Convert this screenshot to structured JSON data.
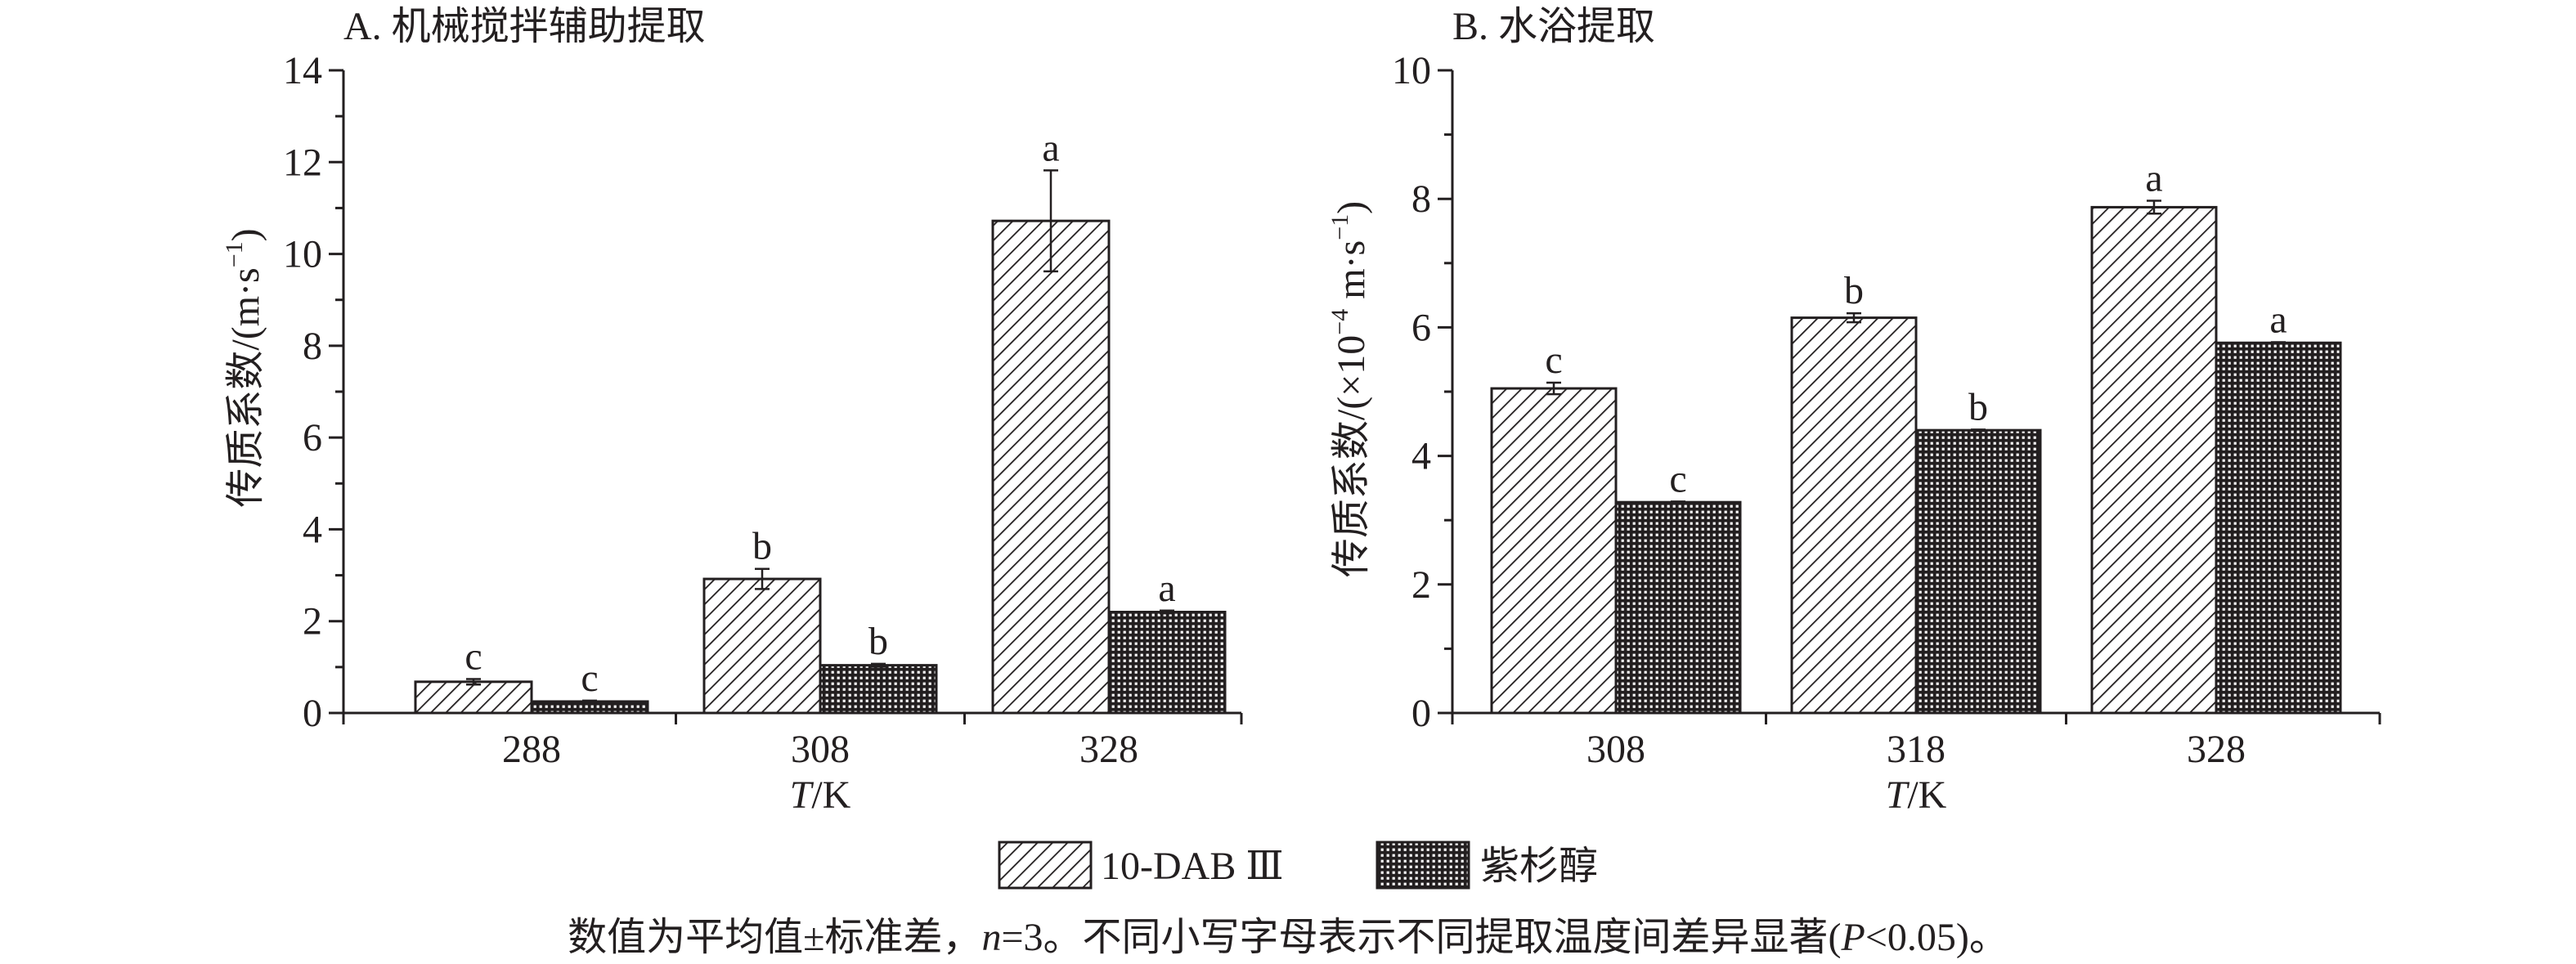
{
  "legend": {
    "series_1": "10-DAB Ⅲ",
    "series_2": "紫杉醇"
  },
  "footnote": {
    "prefix": "数值为平均值±标准差，",
    "n_var": "n",
    "n_value": "=3。不同小写字母表示不同提取温度间差异显著(",
    "p_var": "P",
    "p_value": "<0.05)。"
  },
  "chart_data": [
    {
      "type": "bar",
      "title": "A. 机械搅拌辅助提取",
      "xlabel_var": "T",
      "xlabel_unit": "/K",
      "ylabel": "传质系数/(m·s",
      "ylabel_sup": "−1",
      "ylabel_close": ")",
      "ylim": [
        0,
        14
      ],
      "yticks": [
        0,
        2,
        4,
        6,
        8,
        10,
        12,
        14
      ],
      "categories": [
        "288",
        "308",
        "328"
      ],
      "series": [
        {
          "name": "10-DAB Ⅲ",
          "pattern": "diagonal-hatch",
          "values": [
            0.68,
            2.92,
            10.72
          ],
          "errors": [
            0.06,
            0.22,
            1.1
          ],
          "labels": [
            "c",
            "b",
            "a"
          ]
        },
        {
          "name": "紫杉醇",
          "pattern": "crosshatch",
          "values": [
            0.25,
            1.04,
            2.2
          ],
          "errors": [
            0.02,
            0.03,
            0.03
          ],
          "labels": [
            "c",
            "b",
            "a"
          ]
        }
      ]
    },
    {
      "type": "bar",
      "title": "B. 水浴提取",
      "xlabel_var": "T",
      "xlabel_unit": "/K",
      "ylabel": "传质系数/(×10",
      "ylabel_sup": "−4",
      "ylabel_mid": " m·s",
      "ylabel_sup2": "−1",
      "ylabel_close": ")",
      "ylim": [
        0,
        10
      ],
      "yticks": [
        0,
        2,
        4,
        6,
        8,
        10
      ],
      "categories": [
        "308",
        "318",
        "328"
      ],
      "series": [
        {
          "name": "10-DAB Ⅲ",
          "pattern": "diagonal-hatch",
          "values": [
            5.05,
            6.15,
            7.87
          ],
          "errors": [
            0.09,
            0.07,
            0.1
          ],
          "labels": [
            "c",
            "b",
            "a"
          ]
        },
        {
          "name": "紫杉醇",
          "pattern": "crosshatch",
          "values": [
            3.28,
            4.4,
            5.76
          ],
          "errors": [
            0.01,
            0.01,
            0.01
          ],
          "labels": [
            "c",
            "b",
            "a"
          ]
        }
      ]
    }
  ]
}
